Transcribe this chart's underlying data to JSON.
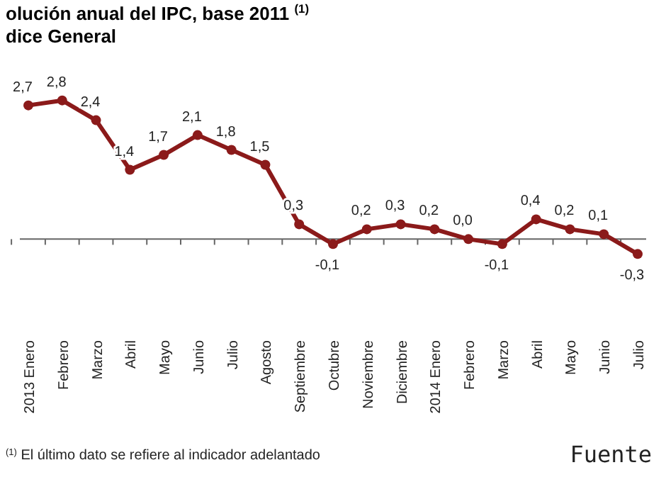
{
  "chart_data": {
    "type": "line",
    "title": "olución anual del IPC, base 2011 $^{(1)}$",
    "subtitle": "dice General",
    "categories": [
      "2013 Enero",
      "Febrero",
      "Marzo",
      "Abril",
      "Mayo",
      "Junio",
      "Julio",
      "Agosto",
      "Septiembre",
      "Octubre",
      "Noviembre",
      "Diciembre",
      "2014 Enero",
      "Febrero",
      "Marzo",
      "Abril",
      "Mayo",
      "Junio",
      "Julio"
    ],
    "series": [
      {
        "color": "#8b1a1a",
        "values": [
          2.7,
          2.8,
          2.4,
          1.4,
          1.7,
          2.1,
          1.8,
          1.5,
          0.3,
          -0.1,
          0.2,
          0.3,
          0.2,
          0.0,
          -0.1,
          0.4,
          0.2,
          0.1,
          -0.3
        ],
        "value_labels": [
          "2,7",
          "2,8",
          "2,4",
          "1,4",
          "1,7",
          "2,1",
          "1,8",
          "1,5",
          "0,3",
          "-0,1",
          "0,2",
          "0,3",
          "0,2",
          "0,0",
          "-0,1",
          "0,4",
          "0,2",
          "0,1",
          "-0,3"
        ]
      }
    ],
    "tick_labels": "x",
    "marker": "circle",
    "line_style": "solid",
    "annotations": [
      "$^{(1)}$ El último dato se refiere al indicador adelantado",
      "Fuente"
    ]
  }
}
